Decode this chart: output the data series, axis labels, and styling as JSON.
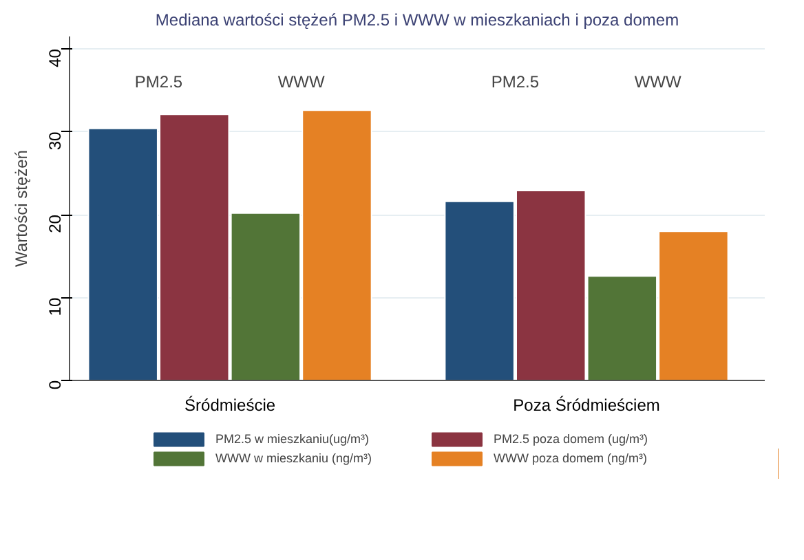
{
  "chart_data": {
    "type": "bar",
    "title": "Mediana wartości stężeń PM2.5 i WWW w mieszkaniach i poza domem",
    "ylabel": "Wartości stężeń",
    "categories": [
      "Śródmieście",
      "Poza Śródmieściem"
    ],
    "series": [
      {
        "name": "PM2.5 w mieszkaniu(ug/m³)",
        "color": "#234f7a",
        "values": [
          30.4,
          21.6
        ]
      },
      {
        "name": "PM2.5 poza domem (ug/m³)",
        "color": "#8b3441",
        "values": [
          32.1,
          22.9
        ]
      },
      {
        "name": "WWW w mieszkaniu (ng/m³)",
        "color": "#527537",
        "values": [
          20.2,
          12.6
        ]
      },
      {
        "name": "WWW poza domem (ng/m³)",
        "color": "#e58124",
        "values": [
          32.6,
          18.0
        ]
      }
    ],
    "ylim": [
      0,
      41.5
    ],
    "yticks": [
      0,
      10,
      20,
      30,
      40
    ],
    "grid": "y",
    "legend": "bottom",
    "annotations": [
      "PM2.5",
      "WWW",
      "PM2.5",
      "WWW"
    ]
  }
}
